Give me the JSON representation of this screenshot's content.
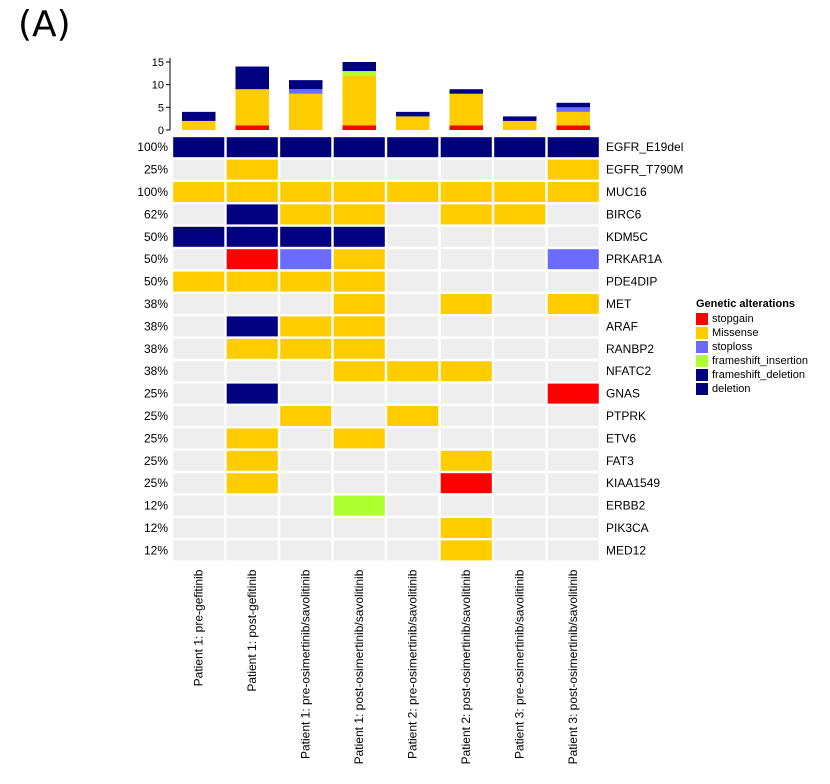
{
  "panel_label": "(A)",
  "colors": {
    "stopgain": "#FF0000",
    "Missense": "#FFCC00",
    "stoploss": "#6B6BFF",
    "frameshift_insertion": "#ADFF2F",
    "frameshift_deletion": "#000080",
    "deletion": "#00007A",
    "background": "#EEEEEE"
  },
  "chart_data": {
    "type": "heatmap",
    "title": "",
    "samples": [
      "Patient 1: pre-gefitinib",
      "Patient 1: post-gefitinib",
      "Patient 1: pre-osimertinib/savolitinib",
      "Patient 1: post-osimertinib/savolitinib",
      "Patient 2: pre-osimertinib/savolitinib",
      "Patient 2: post-osimertinib/savolitinib",
      "Patient 3: pre-osimertinib/savolitinib",
      "Patient 3: post-osimertinib/savolitinib"
    ],
    "genes": [
      "EGFR_E19del",
      "EGFR_T790M",
      "MUC16",
      "BIRC6",
      "KDM5C",
      "PRKAR1A",
      "PDE4DIP",
      "MET",
      "ARAF",
      "RANBP2",
      "NFATC2",
      "GNAS",
      "PTPRK",
      "ETV6",
      "FAT3",
      "KIAA1549",
      "ERBB2",
      "PIK3CA",
      "MED12"
    ],
    "percentages": [
      "100%",
      "25%",
      "100%",
      "62%",
      "50%",
      "50%",
      "50%",
      "38%",
      "38%",
      "38%",
      "38%",
      "25%",
      "25%",
      "25%",
      "25%",
      "25%",
      "12%",
      "12%",
      "12%"
    ],
    "matrix": [
      [
        "deletion",
        "deletion",
        "deletion",
        "deletion",
        "deletion",
        "deletion",
        "deletion",
        "deletion"
      ],
      [
        "",
        "Missense",
        "",
        "",
        "",
        "",
        "",
        "Missense"
      ],
      [
        "Missense",
        "Missense",
        "Missense",
        "Missense",
        "Missense",
        "Missense",
        "Missense",
        "Missense"
      ],
      [
        "",
        "frameshift_deletion",
        "Missense",
        "Missense",
        "",
        "Missense",
        "Missense",
        ""
      ],
      [
        "frameshift_deletion",
        "frameshift_deletion",
        "frameshift_deletion",
        "frameshift_deletion",
        "",
        "",
        "",
        ""
      ],
      [
        "",
        "stopgain",
        "stoploss",
        "Missense",
        "",
        "",
        "",
        "stoploss"
      ],
      [
        "Missense",
        "Missense",
        "Missense",
        "Missense",
        "",
        "",
        "",
        ""
      ],
      [
        "",
        "",
        "",
        "Missense",
        "",
        "Missense",
        "",
        "Missense"
      ],
      [
        "",
        "frameshift_deletion",
        "Missense",
        "Missense",
        "",
        "",
        "",
        ""
      ],
      [
        "",
        "Missense",
        "Missense",
        "Missense",
        "",
        "",
        "",
        ""
      ],
      [
        "",
        "",
        "",
        "Missense",
        "Missense",
        "Missense",
        "",
        ""
      ],
      [
        "",
        "frameshift_deletion",
        "",
        "",
        "",
        "",
        "",
        "stopgain"
      ],
      [
        "",
        "",
        "Missense",
        "",
        "Missense",
        "",
        "",
        ""
      ],
      [
        "",
        "Missense",
        "",
        "Missense",
        "",
        "",
        "",
        ""
      ],
      [
        "",
        "Missense",
        "",
        "",
        "",
        "Missense",
        "",
        ""
      ],
      [
        "",
        "Missense",
        "",
        "",
        "",
        "stopgain",
        "",
        ""
      ],
      [
        "",
        "",
        "",
        "frameshift_insertion",
        "",
        "",
        "",
        ""
      ],
      [
        "",
        "",
        "",
        "",
        "",
        "Missense",
        "",
        ""
      ],
      [
        "",
        "",
        "",
        "",
        "",
        "Missense",
        "",
        ""
      ]
    ],
    "bar_chart": {
      "type": "bar",
      "ylim": [
        0,
        15
      ],
      "yticks": [
        "0",
        "5",
        "10",
        "15"
      ],
      "series": [
        {
          "name": "stopgain",
          "values": [
            0,
            1,
            0,
            1,
            0,
            1,
            0,
            1
          ]
        },
        {
          "name": "Missense",
          "values": [
            2,
            8,
            8,
            11,
            3,
            7,
            2,
            3
          ]
        },
        {
          "name": "stoploss",
          "values": [
            0,
            0,
            1,
            0,
            0,
            0,
            0,
            1
          ]
        },
        {
          "name": "frameshift_insertion",
          "values": [
            0,
            0,
            0,
            1,
            0,
            0,
            0,
            0
          ]
        },
        {
          "name": "frameshift_deletion",
          "values": [
            2,
            5,
            2,
            2,
            1,
            1,
            1,
            1
          ]
        }
      ]
    },
    "legend": {
      "title": "Genetic alterations",
      "position": "right",
      "items": [
        "stopgain",
        "Missense",
        "stoploss",
        "frameshift_insertion",
        "frameshift_deletion",
        "deletion"
      ]
    }
  }
}
